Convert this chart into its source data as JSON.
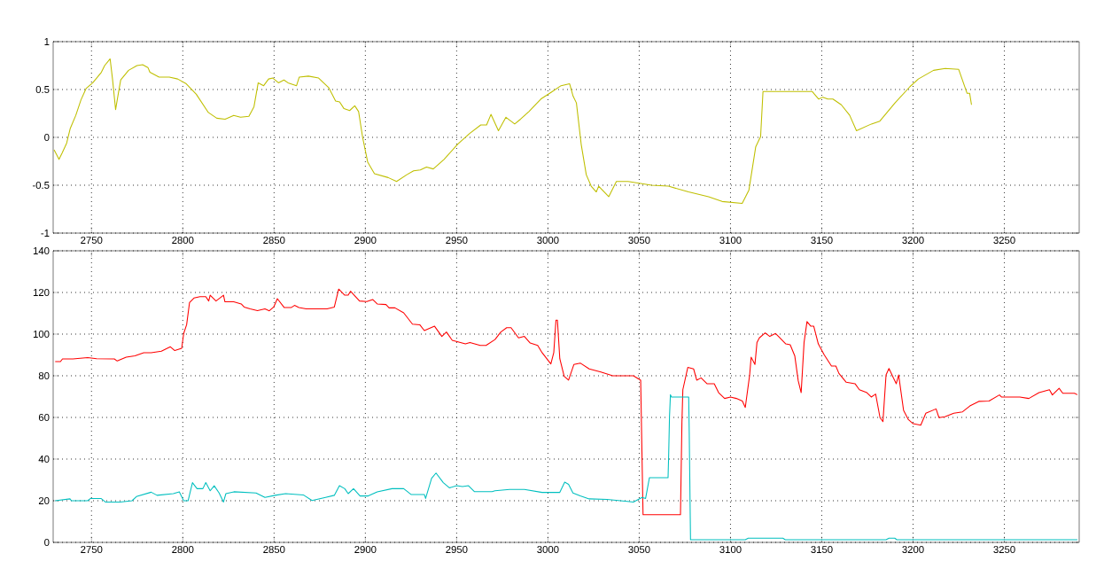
{
  "chart_data": [
    {
      "type": "line",
      "xlim": [
        2729,
        3291
      ],
      "xticks": [
        2750,
        2800,
        2850,
        2900,
        2950,
        3000,
        3050,
        3100,
        3150,
        3200,
        3250
      ],
      "ylim": [
        -1,
        1
      ],
      "yticks": [
        -1,
        -0.5,
        0,
        0.5,
        1
      ],
      "grid": true,
      "series": [
        {
          "color": "#bfbf00",
          "x": [
            2729.5,
            2732.2,
            2734,
            2736.4,
            2738.3,
            2741.4,
            2744.2,
            2747,
            2750.7,
            2755.4,
            2757.2,
            2760.2,
            2761.5,
            2763.2,
            2764.7,
            2766,
            2770.3,
            2774.9,
            2778,
            2780.9,
            2782,
            2787,
            2792.6,
            2797.2,
            2801.9,
            2807.4,
            2814,
            2818.6,
            2823.2,
            2827.9,
            2831.6,
            2836.2,
            2839,
            2841.3,
            2844.3,
            2847,
            2849.3,
            2852.4,
            2855.4,
            2857.6,
            2862.3,
            2863.8,
            2868.8,
            2874.4,
            2879.9,
            2883.7,
            2885.9,
            2888.3,
            2891.4,
            2894.2,
            2896.3,
            2898.5,
            2901.3,
            2905,
            2912.5,
            2917.1,
            2922.7,
            2926.4,
            2930.1,
            2933.5,
            2937.2,
            2943.1,
            2950.6,
            2957.1,
            2963.2,
            2966.4,
            2968.8,
            2972.9,
            2977,
            2981.8,
            2985,
            2989.6,
            2996.1,
            3001.7,
            3007.2,
            3011.9,
            3013.8,
            3015.6,
            3018.2,
            3021,
            3023.7,
            3026.5,
            3027.8,
            3033.3,
            3037.5,
            3043.9,
            3056.8,
            3066,
            3077,
            3088,
            3095.4,
            3106.4,
            3110.1,
            3113.8,
            3116.5,
            3117.8,
            3144.7,
            3148.3,
            3150.6,
            3153.3,
            3156.1,
            3160.7,
            3165.3,
            3169,
            3177.2,
            3181.8,
            3190.1,
            3198.3,
            3202.9,
            3211.2,
            3217.6,
            3225,
            3229.6,
            3231,
            3232
          ],
          "values": [
            -0.13,
            -0.23,
            -0.16,
            -0.06,
            0.09,
            0.23,
            0.39,
            0.51,
            0.57,
            0.68,
            0.75,
            0.82,
            0.61,
            0.29,
            0.46,
            0.6,
            0.7,
            0.75,
            0.76,
            0.73,
            0.68,
            0.63,
            0.63,
            0.61,
            0.56,
            0.45,
            0.26,
            0.2,
            0.19,
            0.23,
            0.21,
            0.22,
            0.32,
            0.57,
            0.54,
            0.61,
            0.62,
            0.57,
            0.6,
            0.57,
            0.54,
            0.63,
            0.64,
            0.62,
            0.52,
            0.38,
            0.37,
            0.3,
            0.28,
            0.33,
            0.27,
            0.0,
            -0.26,
            -0.38,
            -0.42,
            -0.46,
            -0.39,
            -0.35,
            -0.34,
            -0.31,
            -0.33,
            -0.23,
            -0.07,
            0.04,
            0.13,
            0.13,
            0.24,
            0.07,
            0.21,
            0.14,
            0.19,
            0.27,
            0.4,
            0.47,
            0.54,
            0.56,
            0.43,
            0.36,
            -0.07,
            -0.39,
            -0.51,
            -0.57,
            -0.51,
            -0.62,
            -0.46,
            -0.46,
            -0.5,
            -0.51,
            -0.57,
            -0.62,
            -0.67,
            -0.69,
            -0.55,
            -0.1,
            0.01,
            0.48,
            0.48,
            0.4,
            0.42,
            0.4,
            0.4,
            0.34,
            0.23,
            0.07,
            0.14,
            0.17,
            0.36,
            0.53,
            0.61,
            0.7,
            0.72,
            0.71,
            0.46,
            0.46,
            0.34
          ]
        }
      ]
    },
    {
      "type": "line",
      "xlim": [
        2729,
        3291
      ],
      "xticks": [
        2750,
        2800,
        2850,
        2900,
        2950,
        3000,
        3050,
        3100,
        3150,
        3200,
        3250
      ],
      "ylim": [
        0,
        140
      ],
      "yticks": [
        0,
        20,
        40,
        60,
        80,
        100,
        120,
        140
      ],
      "grid": true,
      "series": [
        {
          "color": "#ff0000",
          "x": [
            2730.1,
            2733,
            2734.1,
            2739.8,
            2747.9,
            2752.8,
            2762.5,
            2764.1,
            2769,
            2773.8,
            2778.6,
            2782.7,
            2788.3,
            2793.2,
            2795.6,
            2799.4,
            2800.5,
            2802.1,
            2803.7,
            2806.1,
            2809.4,
            2812.6,
            2814.2,
            2815,
            2818.2,
            2822.3,
            2823.1,
            2827.9,
            2832,
            2833.6,
            2836.9,
            2840.9,
            2845,
            2847.4,
            2849.8,
            2851.8,
            2855.5,
            2859.5,
            2861.2,
            2863.6,
            2867.6,
            2879,
            2883,
            2885.4,
            2888.7,
            2890.6,
            2891.9,
            2896.8,
            2900.8,
            2904,
            2906.5,
            2911.3,
            2913,
            2916.2,
            2921,
            2925.8,
            2929.8,
            2932.3,
            2937.9,
            2941.9,
            2944.4,
            2947.6,
            2954.8,
            2957.3,
            2962.9,
            2966.1,
            2971,
            2974.2,
            2977.4,
            2979.8,
            2983.9,
            2987.1,
            2990.3,
            2994.4,
            2996.8,
            3001.6,
            3003.2,
            3004.4,
            3005.2,
            3006.5,
            3008.9,
            3011.3,
            3014.2,
            3017.7,
            3022.6,
            3029,
            3035.5,
            3046.8,
            3050.8,
            3052.1,
            3072.6,
            3073.4,
            3073.9,
            3076.6,
            3079.8,
            3081.5,
            3083.9,
            3087.1,
            3091.1,
            3093.5,
            3096.8,
            3100,
            3103.2,
            3106.5,
            3108.1,
            3110.5,
            3111.3,
            3113.4,
            3114.5,
            3115.8,
            3119,
            3121.5,
            3124.7,
            3126.3,
            3130.3,
            3132.7,
            3135.2,
            3137.1,
            3138.7,
            3140.3,
            3141.9,
            3144,
            3145.6,
            3148.1,
            3151.3,
            3155.3,
            3157.7,
            3159.4,
            3163.4,
            3168.2,
            3170.6,
            3174.7,
            3177.1,
            3179.5,
            3181.9,
            3183.5,
            3185.2,
            3186.8,
            3189.2,
            3190.8,
            3192.1,
            3194.8,
            3197.3,
            3200,
            3204.2,
            3207,
            3212.6,
            3214.2,
            3217.4,
            3222.3,
            3227.1,
            3231.1,
            3236,
            3241.6,
            3247.3,
            3248.4,
            3258.5,
            3263.4,
            3269,
            3274.7,
            3276.3,
            3280,
            3282,
            3288.4,
            3290
          ],
          "values": [
            86.8,
            86.8,
            88.1,
            88.1,
            88.7,
            88.2,
            88.1,
            87.1,
            88.9,
            89.6,
            91.1,
            91.1,
            91.8,
            93.9,
            92.1,
            93.2,
            100.3,
            104.5,
            115.2,
            117.3,
            118,
            118,
            115.9,
            118.7,
            115.9,
            118.7,
            115.5,
            115.5,
            114.5,
            113,
            112.1,
            111.3,
            112.1,
            111.2,
            113,
            117,
            112.8,
            112.8,
            113.8,
            112.8,
            112.1,
            112.1,
            113,
            121.6,
            118.7,
            118.7,
            120.6,
            115.9,
            115.6,
            116.6,
            114.5,
            114.2,
            112.6,
            112.6,
            110.2,
            104.8,
            104.5,
            101.7,
            103.8,
            98.9,
            101,
            97,
            95.3,
            96,
            94.6,
            94.6,
            97.4,
            101,
            103.1,
            103.1,
            98.2,
            98.9,
            95.7,
            94.6,
            91.1,
            85.7,
            91.1,
            106.7,
            106.7,
            88.2,
            79.7,
            77.9,
            85.4,
            86.1,
            83.3,
            81.8,
            80,
            80,
            77.9,
            13.3,
            13.3,
            57.7,
            73.3,
            84,
            83.3,
            77.9,
            79,
            76.2,
            76.2,
            71.9,
            69.1,
            69.8,
            69.1,
            67.9,
            64.8,
            80.4,
            88.9,
            85.4,
            96,
            98.2,
            100.6,
            98.9,
            100.3,
            98.9,
            95.3,
            94.9,
            89.6,
            77.6,
            71.9,
            96,
            106,
            103.8,
            103.8,
            95.3,
            90.1,
            84.7,
            84.7,
            81.1,
            76.9,
            76.2,
            73.3,
            71.9,
            69.8,
            71.2,
            59.9,
            58,
            80.4,
            83.5,
            79,
            76.2,
            80.4,
            63.4,
            59.1,
            57,
            56.3,
            62,
            64.1,
            59.9,
            60.3,
            62,
            62.7,
            65.5,
            67.7,
            67.9,
            70.8,
            69.8,
            69.8,
            69.1,
            71.9,
            73.3,
            70.8,
            74,
            71.6,
            71.6,
            70.9
          ]
        },
        {
          "color": "#00bfbf",
          "x": [
            2730.1,
            2738.2,
            2739,
            2747.9,
            2749.5,
            2755.2,
            2757.6,
            2765.7,
            2772.2,
            2774.6,
            2782.7,
            2785.9,
            2794.8,
            2798.1,
            2800.5,
            2802.9,
            2805.3,
            2807.8,
            2811,
            2812.6,
            2815,
            2817.2,
            2819.9,
            2822.3,
            2823.6,
            2828,
            2840.1,
            2845,
            2850.6,
            2856.3,
            2866,
            2870.8,
            2878.2,
            2883,
            2885.8,
            2888.7,
            2890.6,
            2893.5,
            2897.1,
            2901.6,
            2906.5,
            2914.6,
            2921,
            2925,
            2927.4,
            2932.3,
            2933,
            2936.3,
            2938.7,
            2942.7,
            2946,
            2950,
            2953.2,
            2956.5,
            2959.7,
            2969.4,
            2971,
            2979,
            2987.1,
            2996.8,
            3006.5,
            3009.2,
            3011.3,
            3013.7,
            3017.7,
            3022.6,
            3032.3,
            3043.5,
            3046.8,
            3051.6,
            3053.5,
            3055.6,
            3065.8,
            3066.1,
            3066.6,
            3067.1,
            3067.7,
            3077.1,
            3077.4,
            3078.1,
            3108.1,
            3109.7,
            3128.7,
            3130,
            3185.2,
            3186.8,
            3190,
            3191.1,
            3290
          ],
          "values": [
            20,
            20.9,
            20,
            20,
            21.1,
            21.1,
            19.4,
            19.4,
            20,
            22,
            24.1,
            22.6,
            23.4,
            24.3,
            20,
            20,
            28.7,
            25.8,
            25.8,
            28.7,
            24.8,
            27.2,
            23.7,
            19.4,
            23.4,
            24.3,
            23.7,
            21.6,
            22.6,
            23.4,
            22.8,
            20.1,
            21.6,
            22.6,
            27.2,
            25.8,
            23.4,
            25.8,
            22.3,
            22.3,
            24.3,
            25.8,
            25.8,
            23,
            23,
            23,
            21.1,
            30.8,
            33.3,
            28.7,
            26.2,
            27.2,
            26.8,
            27.2,
            24.4,
            24.4,
            24.8,
            25.4,
            25.4,
            24,
            24,
            28.9,
            27.9,
            23.7,
            22.3,
            20.9,
            20.6,
            19.7,
            19.4,
            21.6,
            21.1,
            31.1,
            31.1,
            40.7,
            60.6,
            70.9,
            69.8,
            69.8,
            52.8,
            1.3,
            1.3,
            2,
            2,
            1.3,
            1.3,
            2,
            2,
            1.3,
            1.3
          ]
        }
      ]
    }
  ]
}
